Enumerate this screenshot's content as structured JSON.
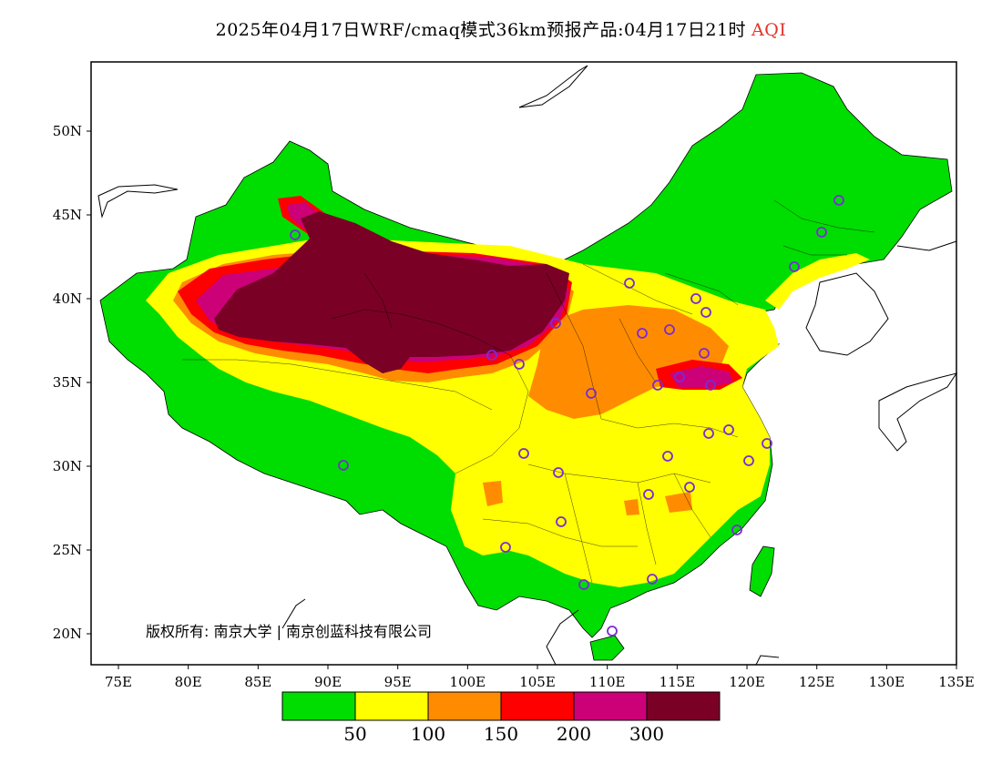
{
  "title": {
    "main": "2025年04月17日WRF/cmaq模式36km预报产品:04月17日21时",
    "variable": "AQI"
  },
  "map": {
    "lon_ticks": [
      "75E",
      "80E",
      "85E",
      "90E",
      "95E",
      "100E",
      "105E",
      "110E",
      "115E",
      "120E",
      "125E",
      "130E",
      "135E"
    ],
    "lat_ticks": [
      "50N",
      "45N",
      "40N",
      "35N",
      "30N",
      "25N",
      "20N"
    ],
    "copyright": "版权所有: 南京大学 | 南京创蓝科技有限公司"
  },
  "legend": {
    "colors": [
      "#00dd00",
      "#ffff00",
      "#ff8c00",
      "#ff0000",
      "#cc0077",
      "#7a0026"
    ],
    "labels": [
      "50",
      "100",
      "150",
      "200",
      "300"
    ]
  },
  "colors": {
    "ocean": "#ffffff",
    "station_marker": "#7a2bd6",
    "title_accent": "#e0342a"
  }
}
